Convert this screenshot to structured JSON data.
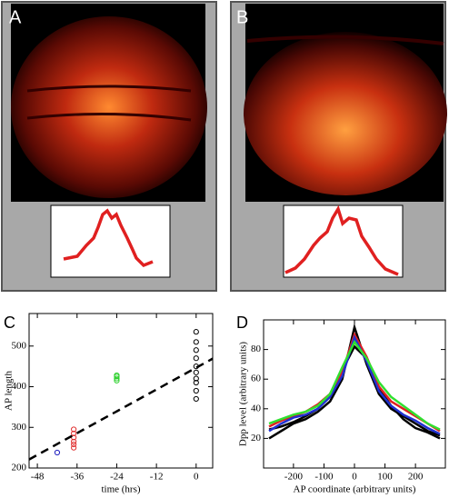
{
  "panel_labels": [
    "A",
    "B",
    "C",
    "D"
  ],
  "chart_data": [
    {
      "type": "scatter",
      "xlabel": "time (hrs)",
      "ylabel": "AP length",
      "xlim": [
        -50.5,
        5
      ],
      "ylim": [
        200,
        580
      ],
      "xticks": [
        -48,
        -36,
        -24,
        -12,
        0
      ],
      "yticks": [
        200,
        300,
        400,
        500
      ],
      "series": [
        {
          "color": "#2020c0",
          "x": [
            -42
          ],
          "values": [
            238
          ]
        },
        {
          "color": "#e03030",
          "x": [
            -37,
            -37,
            -37,
            -37,
            -37,
            -37
          ],
          "values": [
            250,
            258,
            265,
            275,
            285,
            295
          ]
        },
        {
          "color": "#30d030",
          "x": [
            -24,
            -24,
            -24,
            -24
          ],
          "values": [
            415,
            420,
            425,
            428
          ]
        },
        {
          "color": "#000000",
          "x": [
            0,
            0,
            0,
            0,
            0,
            0,
            0,
            0,
            0,
            0
          ],
          "values": [
            370,
            390,
            410,
            420,
            435,
            450,
            470,
            490,
            510,
            535
          ]
        },
        {
          "color": "#000000",
          "mode": "dashed-line",
          "x": [
            -50.5,
            5
          ],
          "values": [
            221,
            469
          ]
        }
      ]
    },
    {
      "type": "line",
      "xlabel": "AP coordinate (arbitrary units)",
      "ylabel": "Dpp level (arbitrary units)",
      "xlim": [
        -298,
        298
      ],
      "ylim": [
        0,
        100
      ],
      "xticks": [
        -200,
        -100,
        0,
        100,
        200
      ],
      "yticks": [
        20,
        40,
        60,
        80
      ],
      "x": [
        -280,
        -240,
        -200,
        -160,
        -120,
        -80,
        -40,
        0,
        40,
        80,
        120,
        160,
        200,
        240,
        280
      ],
      "series": [
        {
          "color": "#000000",
          "values": [
            20,
            25,
            30,
            33,
            38,
            45,
            60,
            95,
            70,
            50,
            40,
            35,
            30,
            25,
            22
          ]
        },
        {
          "color": "#000000",
          "values": [
            26,
            28,
            31,
            35,
            40,
            50,
            66,
            82,
            74,
            54,
            42,
            33,
            27,
            24,
            20
          ]
        },
        {
          "color": "#e02020",
          "values": [
            28,
            32,
            35,
            38,
            43,
            50,
            65,
            90,
            75,
            55,
            45,
            40,
            35,
            30,
            25
          ]
        },
        {
          "color": "#2030d0",
          "values": [
            25,
            30,
            34,
            36,
            40,
            48,
            62,
            88,
            72,
            52,
            42,
            36,
            32,
            27,
            23
          ]
        },
        {
          "color": "#30e030",
          "values": [
            30,
            33,
            36,
            38,
            42,
            50,
            68,
            85,
            74,
            58,
            48,
            42,
            36,
            30,
            26
          ]
        }
      ]
    }
  ]
}
